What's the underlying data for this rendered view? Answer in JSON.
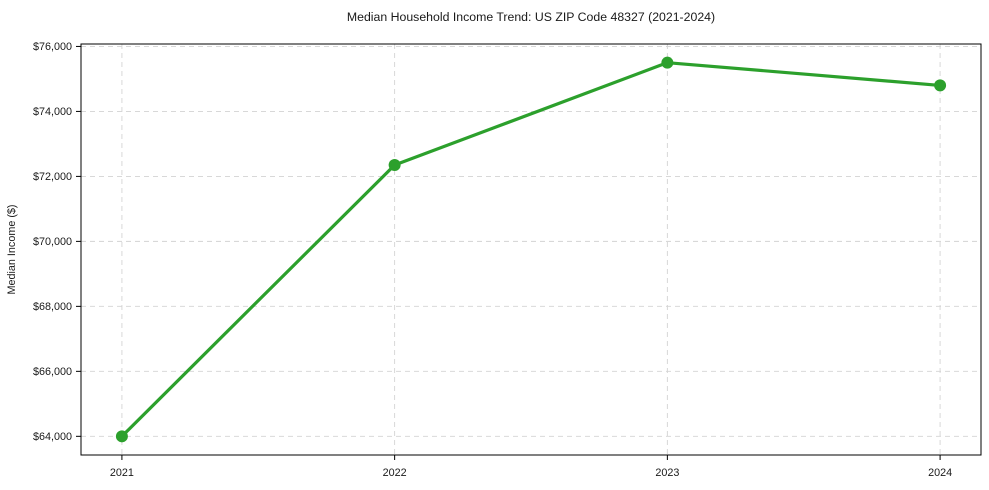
{
  "figure": {
    "background": "#ffffff"
  },
  "chart_data": {
    "type": "line",
    "title": "Median Household Income Trend: US ZIP Code 48327 (2021-2024)",
    "xlabel": "",
    "ylabel": "Median Income ($)",
    "x": [
      2021,
      2022,
      2023,
      2024
    ],
    "values": [
      64000,
      72350,
      75500,
      74800
    ],
    "xticks": [
      2021,
      2022,
      2023,
      2024
    ],
    "xtick_labels": [
      "2021",
      "2022",
      "2023",
      "2024"
    ],
    "yticks": [
      64000,
      66000,
      68000,
      70000,
      72000,
      74000,
      76000
    ],
    "ytick_labels": [
      "$64,000",
      "$66,000",
      "$68,000",
      "$70,000",
      "$72,000",
      "$74,000",
      "$76,000"
    ],
    "xlim": [
      2020.85,
      2024.15
    ],
    "ylim": [
      63425,
      76075
    ],
    "grid": true,
    "grid_style": "dashed",
    "grid_color": "#d3d3d3",
    "line_color": "#2ca02c",
    "marker": "circle",
    "marker_color": "#2ca02c",
    "axis_color": "#000000",
    "legend": false
  }
}
